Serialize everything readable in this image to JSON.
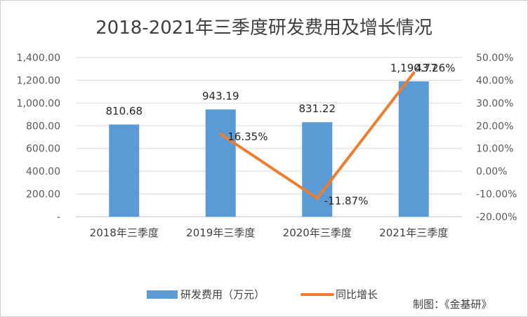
{
  "chart_data": {
    "type": "bar",
    "title": "2018-2021年三季度研发费用及增长情况",
    "categories": [
      "2018年三季度",
      "2019年三季度",
      "2020年三季度",
      "2021年三季度"
    ],
    "series": [
      {
        "name": "研发费用（万元）",
        "type": "bar",
        "axis": "left",
        "color": "#5b9bd5",
        "values": [
          810.68,
          943.19,
          831.22,
          1190.77
        ],
        "labels": [
          "810.68",
          "943.19",
          "831.22",
          "1,190.77"
        ]
      },
      {
        "name": "同比增长",
        "type": "line",
        "axis": "right",
        "color": "#ed7d31",
        "values": [
          null,
          16.35,
          -11.87,
          43.26
        ],
        "labels": [
          "",
          "16.35%",
          "-11.87%",
          "43.26%"
        ]
      }
    ],
    "y_left": {
      "ylim": [
        0,
        1400
      ],
      "tick_labels": [
        "-",
        "200.00",
        "400.00",
        "600.00",
        "800.00",
        "1,000.00",
        "1,200.00",
        "1,400.00"
      ]
    },
    "y_right": {
      "ylim": [
        -20,
        50
      ],
      "tick_labels": [
        "-20.00%",
        "-10.00%",
        "0.00%",
        "10.00%",
        "20.00%",
        "30.00%",
        "40.00%",
        "50.00%"
      ]
    },
    "grid": true,
    "legend_position": "bottom"
  },
  "credit": "制图：《金基研》"
}
